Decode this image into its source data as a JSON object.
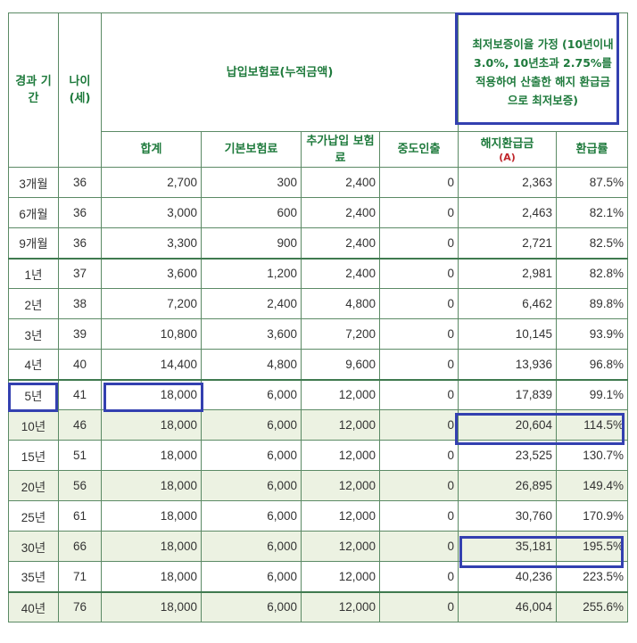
{
  "header": {
    "period": "경과 기간",
    "age": "나이 (세)",
    "premium_group": "납입보험료(누적금액)",
    "guarantee_note": "최저보증이율 가정 (10년이내 3.0%, 10년초과 2.75%를 적용하여 산출한 해지 환급금으로 최저보증)",
    "total": "합계",
    "base": "기본보험료",
    "additional": "추가납입 보험료",
    "withdrawal": "중도인출",
    "surrender": "해지환급금",
    "surrender_mark": "(A)",
    "rate": "환급률"
  },
  "rows": [
    {
      "period": "3개월",
      "age": "36",
      "total": "2,700",
      "base": "300",
      "additional": "2,400",
      "withdrawal": "0",
      "surrender": "2,363",
      "rate": "87.5%"
    },
    {
      "period": "6개월",
      "age": "36",
      "total": "3,000",
      "base": "600",
      "additional": "2,400",
      "withdrawal": "0",
      "surrender": "2,463",
      "rate": "82.1%"
    },
    {
      "period": "9개월",
      "age": "36",
      "total": "3,300",
      "base": "900",
      "additional": "2,400",
      "withdrawal": "0",
      "surrender": "2,721",
      "rate": "82.5%"
    },
    {
      "period": "1년",
      "age": "37",
      "total": "3,600",
      "base": "1,200",
      "additional": "2,400",
      "withdrawal": "0",
      "surrender": "2,981",
      "rate": "82.8%"
    },
    {
      "period": "2년",
      "age": "38",
      "total": "7,200",
      "base": "2,400",
      "additional": "4,800",
      "withdrawal": "0",
      "surrender": "6,462",
      "rate": "89.8%"
    },
    {
      "period": "3년",
      "age": "39",
      "total": "10,800",
      "base": "3,600",
      "additional": "7,200",
      "withdrawal": "0",
      "surrender": "10,145",
      "rate": "93.9%"
    },
    {
      "period": "4년",
      "age": "40",
      "total": "14,400",
      "base": "4,800",
      "additional": "9,600",
      "withdrawal": "0",
      "surrender": "13,936",
      "rate": "96.8%"
    },
    {
      "period": "5년",
      "age": "41",
      "total": "18,000",
      "base": "6,000",
      "additional": "12,000",
      "withdrawal": "0",
      "surrender": "17,839",
      "rate": "99.1%"
    },
    {
      "period": "10년",
      "age": "46",
      "total": "18,000",
      "base": "6,000",
      "additional": "12,000",
      "withdrawal": "0",
      "surrender": "20,604",
      "rate": "114.5%"
    },
    {
      "period": "15년",
      "age": "51",
      "total": "18,000",
      "base": "6,000",
      "additional": "12,000",
      "withdrawal": "0",
      "surrender": "23,525",
      "rate": "130.7%"
    },
    {
      "period": "20년",
      "age": "56",
      "total": "18,000",
      "base": "6,000",
      "additional": "12,000",
      "withdrawal": "0",
      "surrender": "26,895",
      "rate": "149.4%"
    },
    {
      "period": "25년",
      "age": "61",
      "total": "18,000",
      "base": "6,000",
      "additional": "12,000",
      "withdrawal": "0",
      "surrender": "30,760",
      "rate": "170.9%"
    },
    {
      "period": "30년",
      "age": "66",
      "total": "18,000",
      "base": "6,000",
      "additional": "12,000",
      "withdrawal": "0",
      "surrender": "35,181",
      "rate": "195.5%"
    },
    {
      "period": "35년",
      "age": "71",
      "total": "18,000",
      "base": "6,000",
      "additional": "12,000",
      "withdrawal": "0",
      "surrender": "40,236",
      "rate": "223.5%"
    },
    {
      "period": "40년",
      "age": "76",
      "total": "18,000",
      "base": "6,000",
      "additional": "12,000",
      "withdrawal": "0",
      "surrender": "46,004",
      "rate": "255.6%"
    }
  ],
  "colors": {
    "header_text": "#1e7a3c",
    "highlight_box": "#3340b0",
    "row_shade": "#ecf2e2",
    "grid": "#5b8a65"
  }
}
